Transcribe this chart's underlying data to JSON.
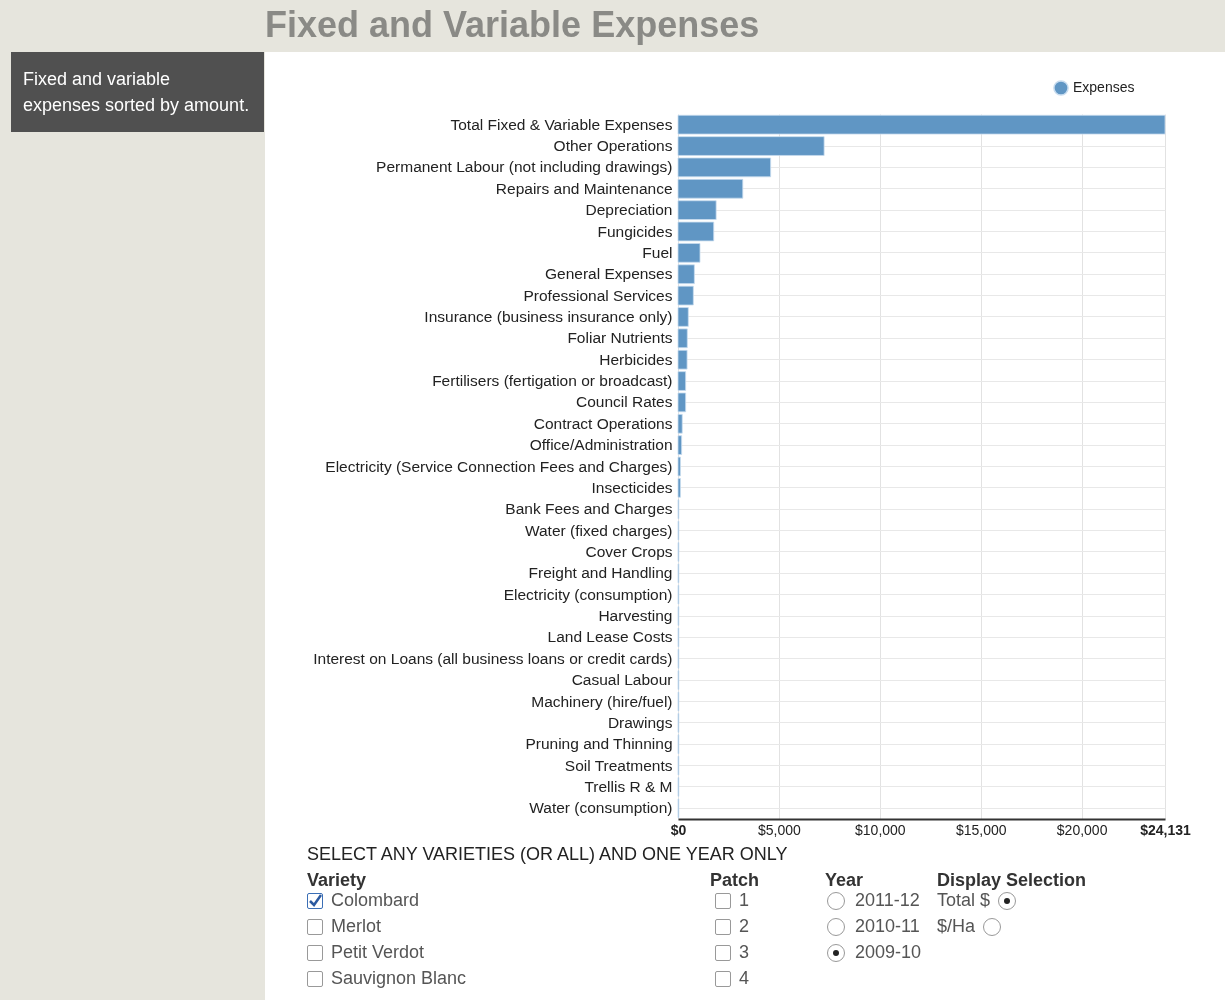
{
  "chart_data": {
    "type": "bar",
    "orientation": "horizontal",
    "title": "Fixed and Variable Expenses",
    "subtitle": "Fixed and variable expenses sorted by amount.",
    "categories": [
      "Total Fixed & Variable Expenses",
      "Other Operations",
      "Permanent Labour (not including drawings)",
      "Repairs and Maintenance",
      "Depreciation",
      "Fungicides",
      "Fuel",
      "General Expenses",
      "Professional Services",
      "Insurance (business insurance only)",
      "Foliar Nutrients",
      "Herbicides",
      "Fertilisers (fertigation or broadcast)",
      "Council Rates",
      "Contract Operations",
      "Office/Administration",
      "Electricity (Service Connection Fees and Charges)",
      "Insecticides",
      "Bank Fees and Charges",
      "Water (fixed charges)",
      "Cover Crops",
      "Freight and Handling",
      "Electricity (consumption)",
      "Harvesting",
      "Land Lease Costs",
      "Interest on Loans (all business loans or credit cards)",
      "Casual Labour",
      "Machinery (hire/fuel)",
      "Drawings",
      "Pruning and Thinning",
      "Soil Treatments",
      "Trellis R & M",
      "Water (consumption)"
    ],
    "series": [
      {
        "name": "Expenses",
        "color": "#6096c4",
        "values": [
          24131,
          7240,
          4590,
          3210,
          1890,
          1770,
          1090,
          810,
          760,
          510,
          460,
          450,
          380,
          380,
          210,
          180,
          120,
          120,
          40,
          40,
          40,
          40,
          40,
          40,
          40,
          40,
          40,
          40,
          40,
          40,
          40,
          40,
          40
        ]
      }
    ],
    "xlim": [
      0,
      24131
    ],
    "xticks": [
      {
        "value": 0,
        "label": "$0"
      },
      {
        "value": 5000,
        "label": "$5,000"
      },
      {
        "value": 10000,
        "label": "$10,000"
      },
      {
        "value": 15000,
        "label": "$15,000"
      },
      {
        "value": 20000,
        "label": "$20,000"
      },
      {
        "value": 24131,
        "label": "$24,131"
      }
    ],
    "grid": true,
    "legend": "top right",
    "annotations": [
      "SELECT ANY VARIETIES (OR ALL) AND ONE YEAR ONLY",
      "Variety",
      "Colombard",
      "Merlot",
      "Petit Verdot",
      "Sauvignon Blanc",
      "Patch",
      "1",
      "2",
      "3",
      "4",
      "Year",
      "2011-12",
      "2010-11",
      "2009-10",
      "Display Selection",
      "Total $",
      "$/Ha"
    ]
  }
}
